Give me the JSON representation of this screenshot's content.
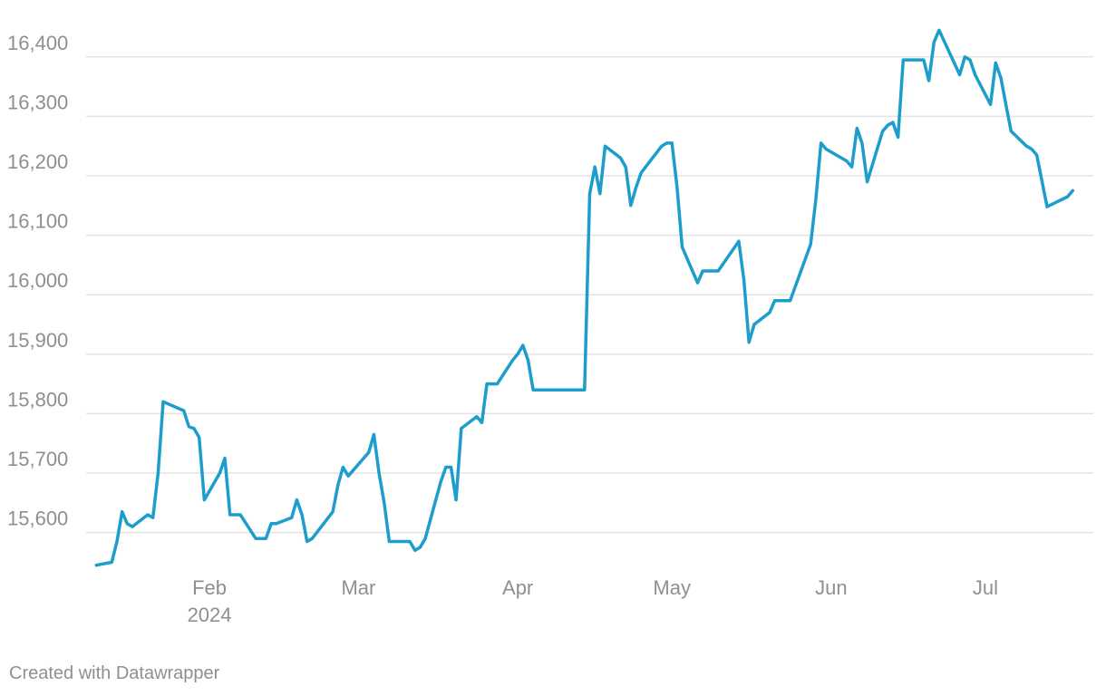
{
  "footer": {
    "credit": "Created with Datawrapper"
  },
  "chart_data": {
    "type": "line",
    "title": "",
    "xlabel": "",
    "ylabel": "",
    "ylim": [
      15540,
      16450
    ],
    "xlim": [
      "2024-01-08",
      "2024-07-22"
    ],
    "grid": true,
    "color": "#1d9dcb",
    "y_ticks": [
      {
        "value": 15600,
        "label": "15,600"
      },
      {
        "value": 15700,
        "label": "15,700"
      },
      {
        "value": 15800,
        "label": "15,800"
      },
      {
        "value": 15900,
        "label": "15,900"
      },
      {
        "value": 16000,
        "label": "16,000"
      },
      {
        "value": 16100,
        "label": "16,100"
      },
      {
        "value": 16200,
        "label": "16,200"
      },
      {
        "value": 16300,
        "label": "16,300"
      },
      {
        "value": 16400,
        "label": "16,400"
      }
    ],
    "x_ticks": [
      {
        "date": "2024-02-01",
        "label": "Feb",
        "sublabel": "2024"
      },
      {
        "date": "2024-03-01",
        "label": "Mar",
        "sublabel": ""
      },
      {
        "date": "2024-04-01",
        "label": "Apr",
        "sublabel": ""
      },
      {
        "date": "2024-05-01",
        "label": "May",
        "sublabel": ""
      },
      {
        "date": "2024-06-01",
        "label": "Jun",
        "sublabel": ""
      },
      {
        "date": "2024-07-01",
        "label": "Jul",
        "sublabel": ""
      }
    ],
    "series": [
      {
        "points": [
          [
            "2024-01-10",
            15545
          ],
          [
            "2024-01-13",
            15550
          ],
          [
            "2024-01-14",
            15585
          ],
          [
            "2024-01-15",
            15635
          ],
          [
            "2024-01-16",
            15615
          ],
          [
            "2024-01-17",
            15610
          ],
          [
            "2024-01-20",
            15630
          ],
          [
            "2024-01-21",
            15625
          ],
          [
            "2024-01-22",
            15700
          ],
          [
            "2024-01-23",
            15820
          ],
          [
            "2024-01-27",
            15805
          ],
          [
            "2024-01-28",
            15778
          ],
          [
            "2024-01-29",
            15775
          ],
          [
            "2024-01-30",
            15760
          ],
          [
            "2024-01-31",
            15655
          ],
          [
            "2024-02-03",
            15700
          ],
          [
            "2024-02-04",
            15725
          ],
          [
            "2024-02-05",
            15630
          ],
          [
            "2024-02-07",
            15630
          ],
          [
            "2024-02-10",
            15590
          ],
          [
            "2024-02-12",
            15590
          ],
          [
            "2024-02-13",
            15615
          ],
          [
            "2024-02-14",
            15615
          ],
          [
            "2024-02-17",
            15625
          ],
          [
            "2024-02-18",
            15655
          ],
          [
            "2024-02-19",
            15630
          ],
          [
            "2024-02-20",
            15585
          ],
          [
            "2024-02-21",
            15590
          ],
          [
            "2024-02-25",
            15635
          ],
          [
            "2024-02-26",
            15680
          ],
          [
            "2024-02-27",
            15710
          ],
          [
            "2024-02-28",
            15695
          ],
          [
            "2024-03-03",
            15735
          ],
          [
            "2024-03-04",
            15765
          ],
          [
            "2024-03-05",
            15700
          ],
          [
            "2024-03-06",
            15650
          ],
          [
            "2024-03-07",
            15585
          ],
          [
            "2024-03-11",
            15585
          ],
          [
            "2024-03-12",
            15570
          ],
          [
            "2024-03-13",
            15575
          ],
          [
            "2024-03-14",
            15590
          ],
          [
            "2024-03-17",
            15685
          ],
          [
            "2024-03-18",
            15710
          ],
          [
            "2024-03-19",
            15710
          ],
          [
            "2024-03-20",
            15655
          ],
          [
            "2024-03-21",
            15775
          ],
          [
            "2024-03-24",
            15795
          ],
          [
            "2024-03-25",
            15785
          ],
          [
            "2024-03-26",
            15850
          ],
          [
            "2024-03-28",
            15850
          ],
          [
            "2024-03-31",
            15890
          ],
          [
            "2024-04-01",
            15900
          ],
          [
            "2024-04-02",
            15915
          ],
          [
            "2024-04-03",
            15890
          ],
          [
            "2024-04-04",
            15840
          ],
          [
            "2024-04-14",
            15840
          ],
          [
            "2024-04-15",
            16170
          ],
          [
            "2024-04-16",
            16215
          ],
          [
            "2024-04-17",
            16170
          ],
          [
            "2024-04-18",
            16250
          ],
          [
            "2024-04-21",
            16230
          ],
          [
            "2024-04-22",
            16215
          ],
          [
            "2024-04-23",
            16150
          ],
          [
            "2024-04-24",
            16180
          ],
          [
            "2024-04-25",
            16205
          ],
          [
            "2024-04-29",
            16250
          ],
          [
            "2024-04-30",
            16255
          ],
          [
            "2024-05-01",
            16255
          ],
          [
            "2024-05-02",
            16180
          ],
          [
            "2024-05-03",
            16080
          ],
          [
            "2024-05-06",
            16020
          ],
          [
            "2024-05-07",
            16040
          ],
          [
            "2024-05-10",
            16040
          ],
          [
            "2024-05-14",
            16090
          ],
          [
            "2024-05-15",
            16025
          ],
          [
            "2024-05-16",
            15920
          ],
          [
            "2024-05-17",
            15950
          ],
          [
            "2024-05-20",
            15970
          ],
          [
            "2024-05-21",
            15990
          ],
          [
            "2024-05-24",
            15990
          ],
          [
            "2024-05-28",
            16085
          ],
          [
            "2024-05-29",
            16160
          ],
          [
            "2024-05-30",
            16255
          ],
          [
            "2024-05-31",
            16245
          ],
          [
            "2024-06-04",
            16225
          ],
          [
            "2024-06-05",
            16215
          ],
          [
            "2024-06-06",
            16280
          ],
          [
            "2024-06-07",
            16255
          ],
          [
            "2024-06-08",
            16190
          ],
          [
            "2024-06-11",
            16275
          ],
          [
            "2024-06-12",
            16285
          ],
          [
            "2024-06-13",
            16290
          ],
          [
            "2024-06-14",
            16265
          ],
          [
            "2024-06-15",
            16395
          ],
          [
            "2024-06-19",
            16395
          ],
          [
            "2024-06-20",
            16360
          ],
          [
            "2024-06-21",
            16425
          ],
          [
            "2024-06-22",
            16445
          ],
          [
            "2024-06-26",
            16370
          ],
          [
            "2024-06-27",
            16400
          ],
          [
            "2024-06-28",
            16395
          ],
          [
            "2024-06-29",
            16370
          ],
          [
            "2024-07-02",
            16320
          ],
          [
            "2024-07-03",
            16390
          ],
          [
            "2024-07-04",
            16365
          ],
          [
            "2024-07-05",
            16320
          ],
          [
            "2024-07-06",
            16275
          ],
          [
            "2024-07-09",
            16250
          ],
          [
            "2024-07-10",
            16245
          ],
          [
            "2024-07-11",
            16235
          ],
          [
            "2024-07-13",
            16148
          ],
          [
            "2024-07-17",
            16165
          ],
          [
            "2024-07-18",
            16175
          ]
        ]
      }
    ]
  }
}
